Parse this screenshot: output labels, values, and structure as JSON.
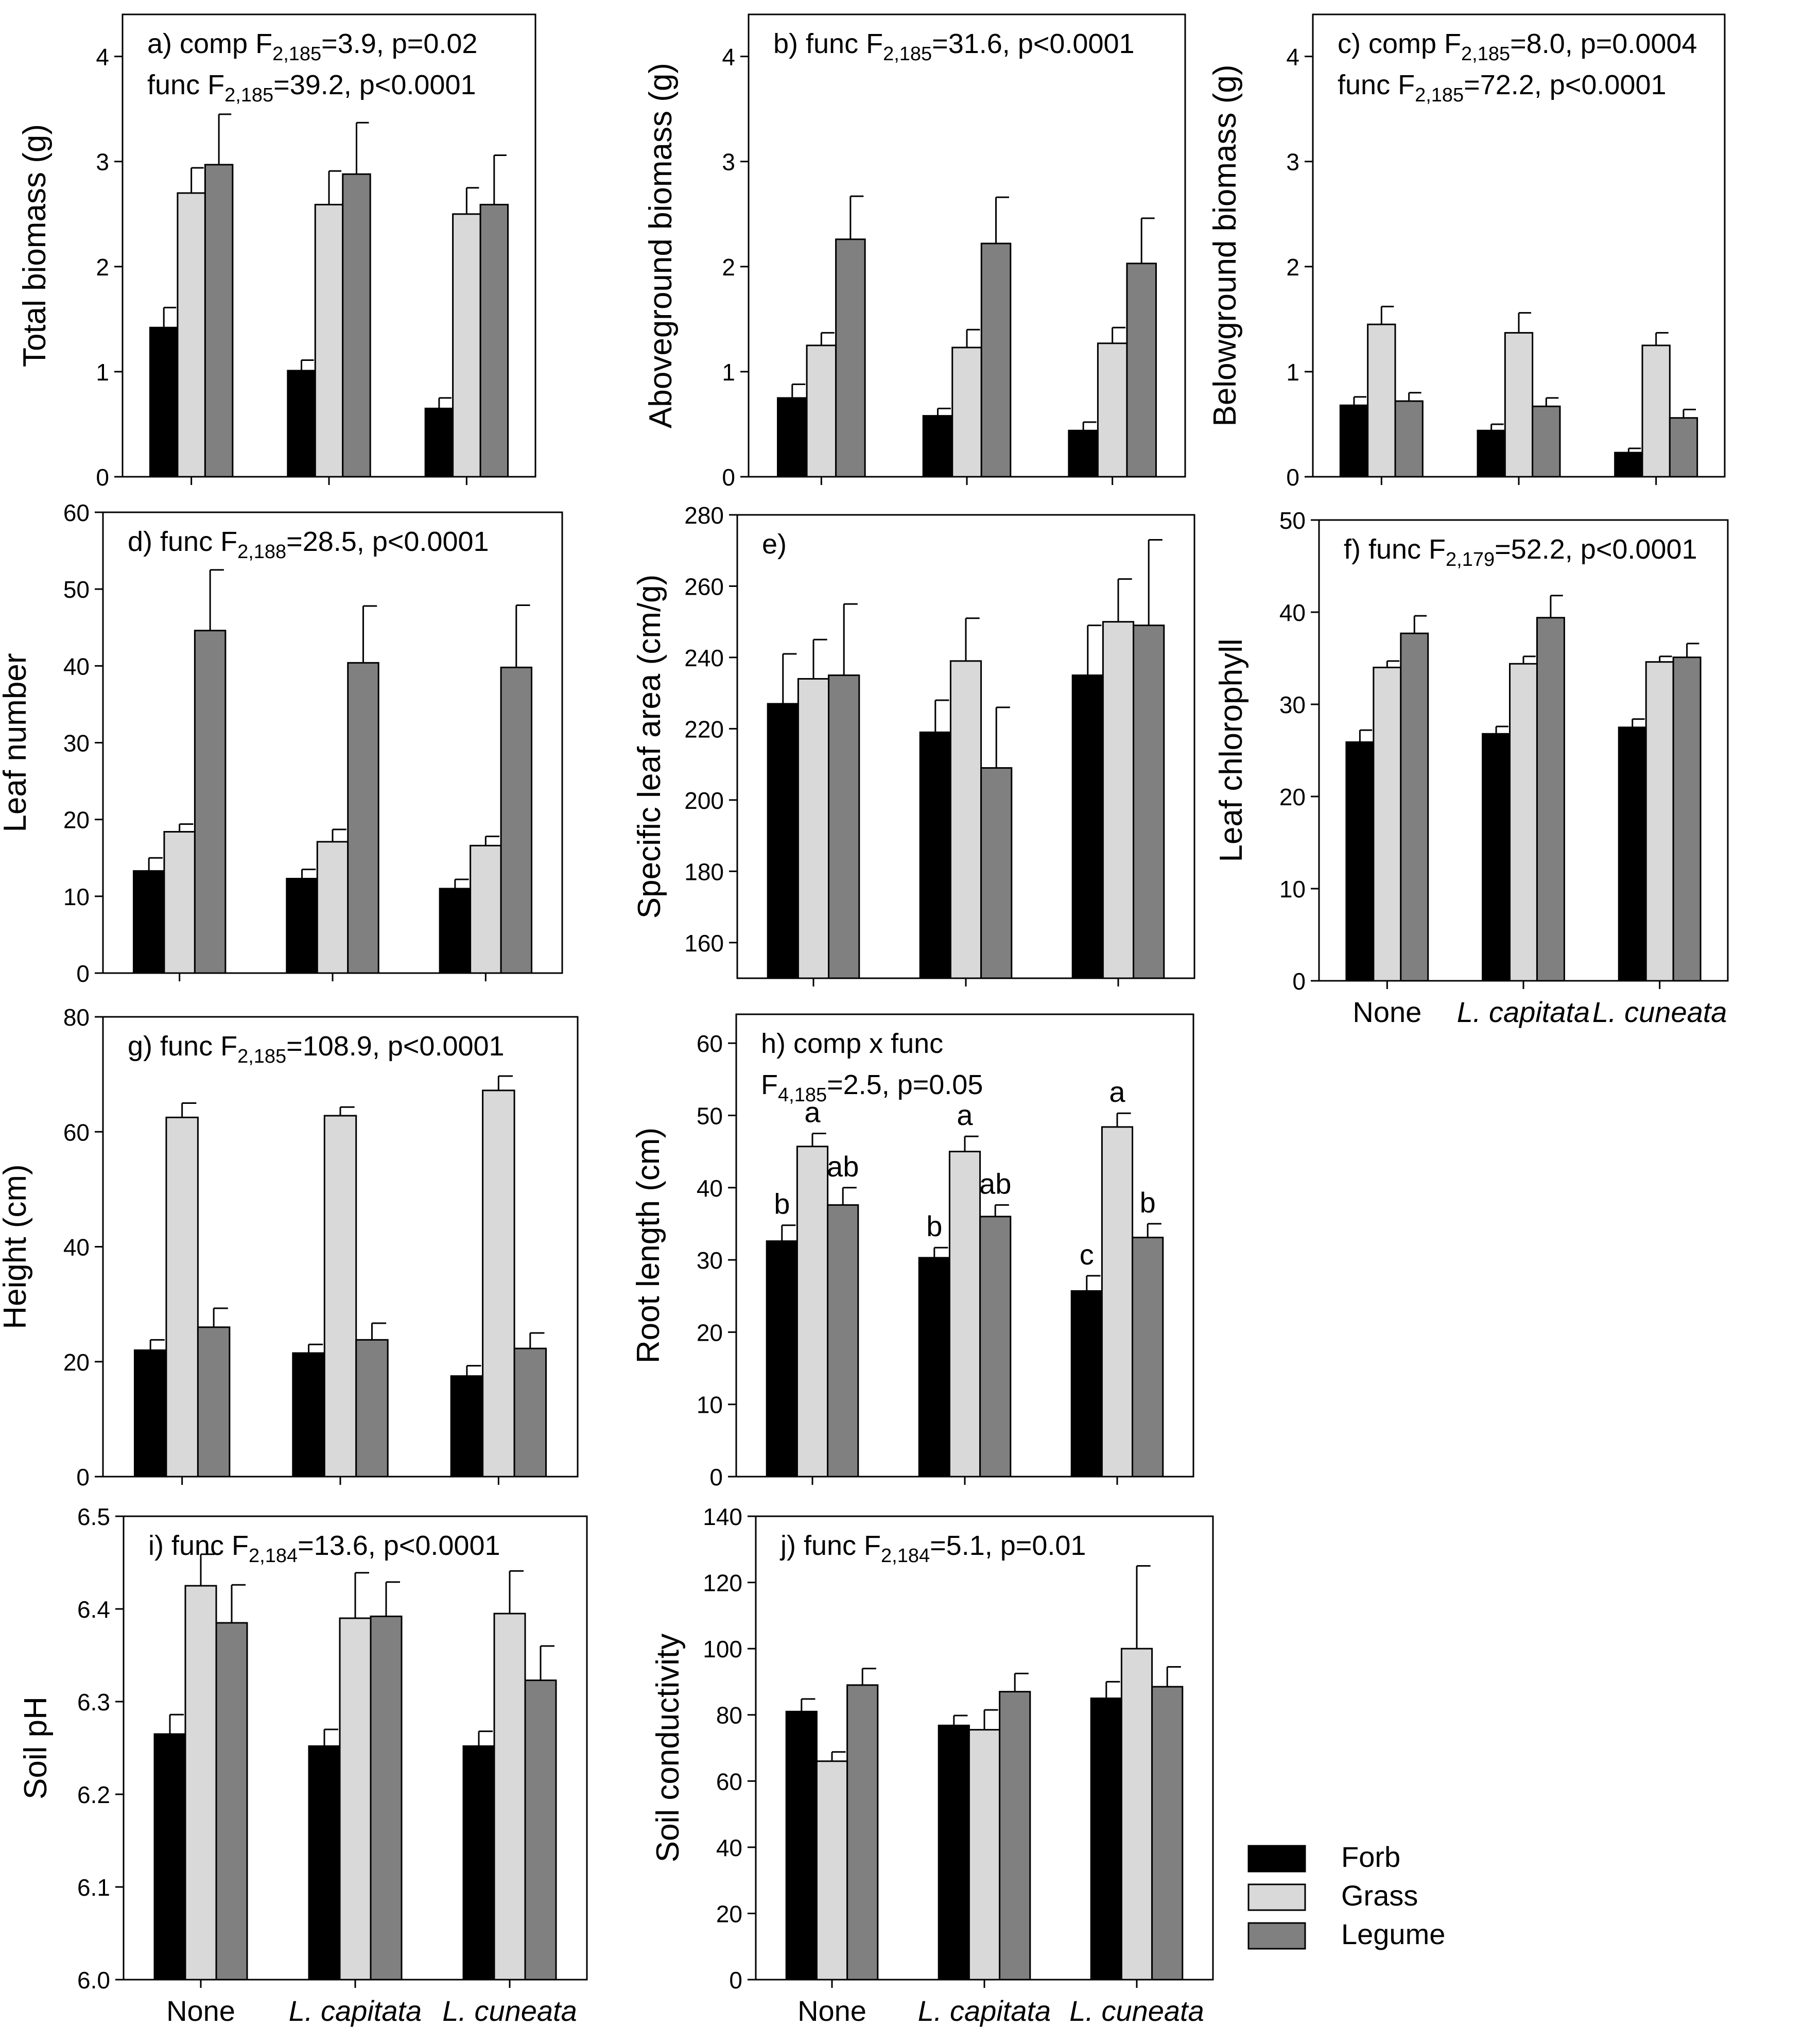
{
  "colors": {
    "forb": "#000000",
    "grass": "#d9d9d9",
    "legume": "#808080",
    "edge": "#000000"
  },
  "categories": [
    {
      "key": "none",
      "label": "None",
      "italic": false
    },
    {
      "key": "cap",
      "label": "L. capitata",
      "italic": true
    },
    {
      "key": "cun",
      "label": "L. cuneata",
      "italic": true
    }
  ],
  "legend": {
    "position": "bottom-right",
    "items": [
      "Forb",
      "Grass",
      "Legume"
    ]
  },
  "chart_data": [
    {
      "id": "a",
      "type": "bar",
      "ylabel": "Total biomass (g)",
      "ylim": [
        0,
        4.4
      ],
      "yticks": [
        0,
        1,
        2,
        3,
        4
      ],
      "annotation": [
        [
          "a) comp F",
          "2,185",
          "=3.9, p=0.02"
        ],
        [
          "func F",
          "2,185",
          "=39.2, p<0.0001"
        ]
      ],
      "series": [
        {
          "name": "Forb",
          "values": [
            1.42,
            1.01,
            0.65
          ],
          "errors": [
            0.19,
            0.1,
            0.1
          ]
        },
        {
          "name": "Grass",
          "values": [
            2.7,
            2.59,
            2.5
          ],
          "errors": [
            0.24,
            0.32,
            0.25
          ]
        },
        {
          "name": "Legume",
          "values": [
            2.97,
            2.88,
            2.59
          ],
          "errors": [
            0.48,
            0.49,
            0.47
          ]
        }
      ]
    },
    {
      "id": "b",
      "type": "bar",
      "ylabel": "Aboveground biomass (g)",
      "ylim": [
        0,
        4.4
      ],
      "yticks": [
        0,
        1,
        2,
        3,
        4
      ],
      "annotation": [
        [
          "b) func F",
          "2,185",
          "=31.6, p<0.0001"
        ]
      ],
      "series": [
        {
          "name": "Forb",
          "values": [
            0.75,
            0.58,
            0.44
          ],
          "errors": [
            0.13,
            0.07,
            0.08
          ]
        },
        {
          "name": "Grass",
          "values": [
            1.25,
            1.23,
            1.27
          ],
          "errors": [
            0.12,
            0.17,
            0.15
          ]
        },
        {
          "name": "Legume",
          "values": [
            2.26,
            2.22,
            2.03
          ],
          "errors": [
            0.41,
            0.44,
            0.43
          ]
        }
      ]
    },
    {
      "id": "c",
      "type": "bar",
      "ylabel": "Belowground biomass (g)",
      "ylim": [
        0,
        4.4
      ],
      "yticks": [
        0,
        1,
        2,
        3,
        4
      ],
      "annotation": [
        [
          "c) comp F",
          "2,185",
          "=8.0, p=0.0004"
        ],
        [
          "func F",
          "2,185",
          "=72.2, p<0.0001"
        ]
      ],
      "series": [
        {
          "name": "Forb",
          "values": [
            0.68,
            0.44,
            0.23
          ],
          "errors": [
            0.08,
            0.06,
            0.04
          ]
        },
        {
          "name": "Grass",
          "values": [
            1.45,
            1.37,
            1.25
          ],
          "errors": [
            0.17,
            0.19,
            0.12
          ]
        },
        {
          "name": "Legume",
          "values": [
            0.72,
            0.67,
            0.56
          ],
          "errors": [
            0.08,
            0.08,
            0.08
          ]
        }
      ]
    },
    {
      "id": "d",
      "type": "bar",
      "ylabel": "Leaf number",
      "ylim": [
        0,
        60
      ],
      "yticks": [
        0,
        10,
        20,
        30,
        40,
        50,
        60
      ],
      "annotation": [
        [
          "d) func F",
          "2,188",
          "=28.5, p<0.0001"
        ]
      ],
      "series": [
        {
          "name": "Forb",
          "values": [
            13.3,
            12.3,
            11.0
          ],
          "errors": [
            1.7,
            1.2,
            1.2
          ]
        },
        {
          "name": "Grass",
          "values": [
            18.4,
            17.1,
            16.6
          ],
          "errors": [
            1.0,
            1.6,
            1.2
          ]
        },
        {
          "name": "Legume",
          "values": [
            44.6,
            40.4,
            39.8
          ],
          "errors": [
            7.9,
            7.4,
            8.1
          ]
        }
      ]
    },
    {
      "id": "e",
      "type": "bar",
      "ylabel": "Specific leaf area (cm/g)",
      "ylim": [
        150,
        280
      ],
      "yticks": [
        160,
        180,
        200,
        220,
        240,
        260,
        280
      ],
      "annotation": [
        [
          "e)",
          "",
          ""
        ]
      ],
      "series": [
        {
          "name": "Forb",
          "values": [
            227,
            219,
            235
          ],
          "errors": [
            14,
            9,
            14
          ]
        },
        {
          "name": "Grass",
          "values": [
            234,
            239,
            250
          ],
          "errors": [
            11,
            12,
            12
          ]
        },
        {
          "name": "Legume",
          "values": [
            235,
            209,
            249
          ],
          "errors": [
            20,
            17,
            24
          ]
        }
      ]
    },
    {
      "id": "f",
      "type": "bar",
      "ylabel": "Leaf chlorophyll",
      "ylim": [
        0,
        50
      ],
      "yticks": [
        0,
        10,
        20,
        30,
        40,
        50
      ],
      "annotation": [
        [
          "f) func F",
          "2,179",
          "=52.2, p<0.0001"
        ]
      ],
      "series": [
        {
          "name": "Forb",
          "values": [
            25.9,
            26.8,
            27.5
          ],
          "errors": [
            1.3,
            0.8,
            0.9
          ]
        },
        {
          "name": "Grass",
          "values": [
            34.0,
            34.4,
            34.6
          ],
          "errors": [
            0.7,
            0.8,
            0.6
          ]
        },
        {
          "name": "Legume",
          "values": [
            37.7,
            39.4,
            35.1
          ],
          "errors": [
            1.9,
            2.4,
            1.5
          ]
        }
      ]
    },
    {
      "id": "g",
      "type": "bar",
      "ylabel": "Height (cm)",
      "ylim": [
        0,
        80
      ],
      "yticks": [
        0,
        20,
        40,
        60,
        80
      ],
      "annotation": [
        [
          "g) func F",
          "2,185",
          "=108.9, p<0.0001"
        ]
      ],
      "series": [
        {
          "name": "Forb",
          "values": [
            22.0,
            21.5,
            17.5
          ],
          "errors": [
            1.8,
            1.5,
            1.8
          ]
        },
        {
          "name": "Grass",
          "values": [
            62.5,
            62.8,
            67.2
          ],
          "errors": [
            2.5,
            1.5,
            2.5
          ]
        },
        {
          "name": "Legume",
          "values": [
            26.0,
            23.8,
            22.3
          ],
          "errors": [
            3.3,
            2.9,
            2.7
          ]
        }
      ]
    },
    {
      "id": "h",
      "type": "bar",
      "ylabel": "Root length (cm)",
      "ylim": [
        0,
        64
      ],
      "yticks": [
        0,
        10,
        20,
        30,
        40,
        50,
        60
      ],
      "annotation": [
        [
          "h) comp x func",
          "",
          ""
        ],
        [
          "F",
          "4,185",
          "=2.5, p=0.05"
        ]
      ],
      "letters": [
        [
          "b",
          "b",
          "c"
        ],
        [
          "a",
          "a",
          "a"
        ],
        [
          "ab",
          "ab",
          "b"
        ]
      ],
      "series": [
        {
          "name": "Forb",
          "values": [
            32.6,
            30.3,
            25.7
          ],
          "errors": [
            2.2,
            1.4,
            2.1
          ]
        },
        {
          "name": "Grass",
          "values": [
            45.7,
            45.0,
            48.4
          ],
          "errors": [
            1.8,
            2.1,
            1.9
          ]
        },
        {
          "name": "Legume",
          "values": [
            37.6,
            36.0,
            33.1
          ],
          "errors": [
            2.4,
            1.6,
            1.9
          ]
        }
      ]
    },
    {
      "id": "i",
      "type": "bar",
      "ylabel": "Soil pH",
      "ylim": [
        6.0,
        6.5
      ],
      "yticks": [
        6.0,
        6.1,
        6.2,
        6.3,
        6.4,
        6.5
      ],
      "annotation": [
        [
          "i) func F",
          "2,184",
          "=13.6, p<0.0001"
        ]
      ],
      "series": [
        {
          "name": "Forb",
          "values": [
            6.265,
            6.252,
            6.252
          ],
          "errors": [
            0.021,
            0.018,
            0.016
          ]
        },
        {
          "name": "Grass",
          "values": [
            6.425,
            6.39,
            6.395
          ],
          "errors": [
            0.034,
            0.049,
            0.046
          ]
        },
        {
          "name": "Legume",
          "values": [
            6.385,
            6.392,
            6.323
          ],
          "errors": [
            0.041,
            0.037,
            0.037
          ]
        }
      ]
    },
    {
      "id": "j",
      "type": "bar",
      "ylabel": "Soil conductivity",
      "ylim": [
        0,
        140
      ],
      "yticks": [
        0,
        20,
        40,
        60,
        80,
        100,
        120,
        140
      ],
      "annotation": [
        [
          "j) func F",
          "2,184",
          "=5.1, p=0.01"
        ]
      ],
      "series": [
        {
          "name": "Forb",
          "values": [
            81.0,
            76.8,
            85.0
          ],
          "errors": [
            3.8,
            3.0,
            5.0
          ]
        },
        {
          "name": "Grass",
          "values": [
            66.0,
            75.5,
            100.0
          ],
          "errors": [
            2.8,
            6.0,
            25.0
          ]
        },
        {
          "name": "Legume",
          "values": [
            89.0,
            87.0,
            88.5
          ],
          "errors": [
            5.0,
            5.5,
            6.0
          ]
        }
      ]
    }
  ]
}
